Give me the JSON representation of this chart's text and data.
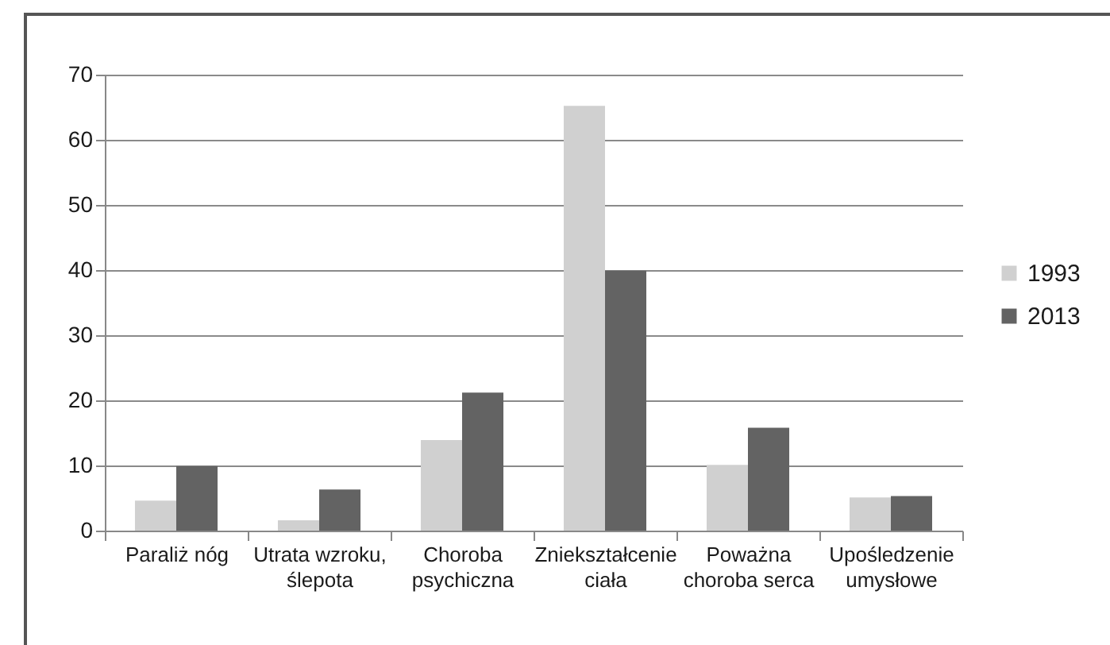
{
  "chart_data": {
    "type": "bar",
    "categories": [
      "Paraliż nóg",
      "Utrata wzroku, ślepota",
      "Choroba psychiczna",
      "Zniekształcenie ciała",
      "Poważna choroba serca",
      "Upośledzenie umysłowe"
    ],
    "series": [
      {
        "name": "1993",
        "color": "#d0d0d0",
        "values": [
          4.6,
          1.6,
          13.9,
          65.2,
          10.1,
          5.1
        ]
      },
      {
        "name": "2013",
        "color": "#636363",
        "values": [
          9.9,
          6.3,
          21.2,
          39.9,
          15.8,
          5.3
        ]
      }
    ],
    "ylim": [
      0,
      70
    ],
    "yticks": [
      0,
      10,
      20,
      30,
      40,
      50,
      60,
      70
    ],
    "grid": "y",
    "legend": "right"
  }
}
